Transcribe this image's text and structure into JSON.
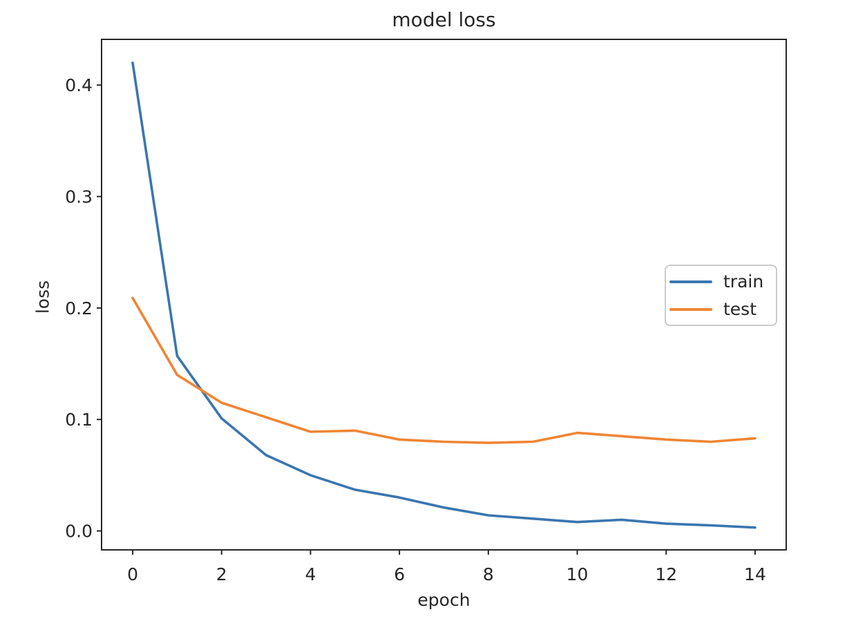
{
  "figure": {
    "background": "#ffffff",
    "text_color": "#262626",
    "axis_color": "#262626"
  },
  "chart_data": {
    "type": "line",
    "title": "model loss",
    "xlabel": "epoch",
    "ylabel": "loss",
    "x": [
      0,
      1,
      2,
      3,
      4,
      5,
      6,
      7,
      8,
      9,
      10,
      11,
      12,
      13,
      14
    ],
    "series": [
      {
        "name": "train",
        "color": "#3a76b0",
        "values": [
          0.42,
          0.157,
          0.101,
          0.068,
          0.05,
          0.037,
          0.03,
          0.021,
          0.014,
          0.011,
          0.008,
          0.01,
          0.0065,
          0.005,
          0.003
        ]
      },
      {
        "name": "test",
        "color": "#ef8535",
        "values": [
          0.209,
          0.14,
          0.115,
          0.102,
          0.089,
          0.09,
          0.082,
          0.08,
          0.079,
          0.08,
          0.088,
          0.085,
          0.082,
          0.08,
          0.083
        ]
      }
    ],
    "xticks": [
      0,
      2,
      4,
      6,
      8,
      10,
      12,
      14
    ],
    "yticks": [
      0.0,
      0.1,
      0.2,
      0.3,
      0.4
    ],
    "xlim": [
      -0.7,
      14.7
    ],
    "ylim": [
      -0.017,
      0.441
    ],
    "grid": false,
    "legend": {
      "position": "center right",
      "entries": [
        "train",
        "test"
      ]
    }
  }
}
